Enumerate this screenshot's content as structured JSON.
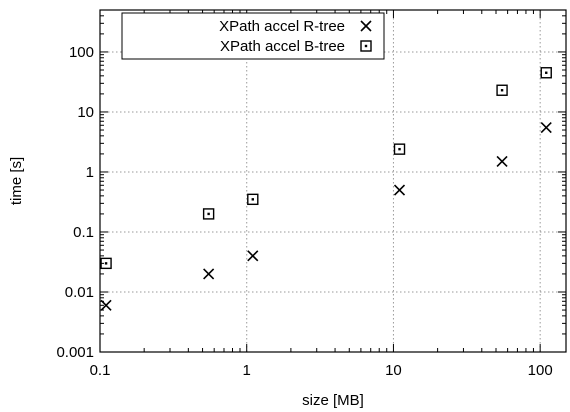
{
  "chart_data": {
    "type": "scatter",
    "title": "",
    "xlabel": "size [MB]",
    "ylabel": "time [s]",
    "xscale": "log",
    "yscale": "log",
    "xlim": [
      0.1,
      150
    ],
    "ylim": [
      0.001,
      500
    ],
    "grid": true,
    "legend_position": "top-left",
    "x_ticks": [
      {
        "value": 0.1,
        "label": "0.1"
      },
      {
        "value": 1,
        "label": "1"
      },
      {
        "value": 10,
        "label": "10"
      },
      {
        "value": 100,
        "label": "100"
      }
    ],
    "y_ticks": [
      {
        "value": 0.001,
        "label": "0.001"
      },
      {
        "value": 0.01,
        "label": "0.01"
      },
      {
        "value": 0.1,
        "label": "0.1"
      },
      {
        "value": 1,
        "label": "1"
      },
      {
        "value": 10,
        "label": "10"
      },
      {
        "value": 100,
        "label": "100"
      }
    ],
    "series": [
      {
        "name": "XPath accel R-tree",
        "marker": "x",
        "x": [
          0.11,
          0.55,
          1.1,
          11,
          55,
          110
        ],
        "y": [
          0.006,
          0.02,
          0.04,
          0.5,
          1.5,
          5.5
        ]
      },
      {
        "name": "XPath accel B-tree",
        "marker": "square-dot",
        "x": [
          0.11,
          0.55,
          1.1,
          11,
          55,
          110
        ],
        "y": [
          0.03,
          0.2,
          0.35,
          2.4,
          23,
          45
        ]
      }
    ]
  }
}
